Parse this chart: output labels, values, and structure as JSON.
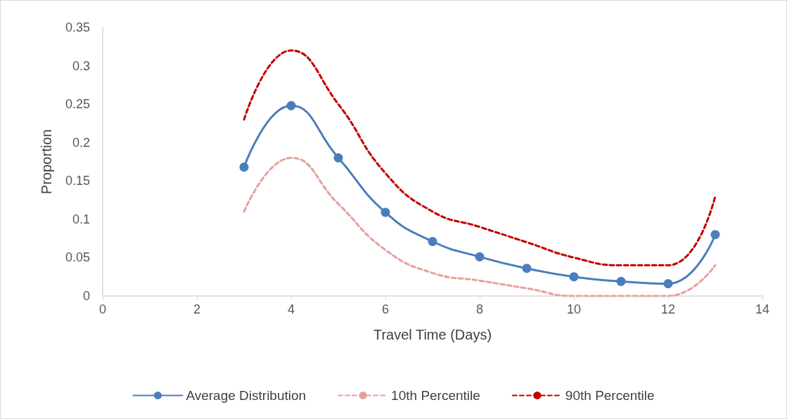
{
  "chart_data": {
    "type": "line",
    "xlabel": "Travel Time (Days)",
    "ylabel": "Proportion",
    "xlim": [
      0,
      14
    ],
    "xticks": [
      0,
      2,
      4,
      6,
      8,
      10,
      12,
      14
    ],
    "ylim": [
      0,
      0.35
    ],
    "yticks": [
      0,
      0.05,
      0.1,
      0.15,
      0.2,
      0.25,
      0.3,
      0.35
    ],
    "x": [
      3,
      4,
      5,
      6,
      7,
      8,
      9,
      10,
      11,
      12,
      13
    ],
    "grid": false,
    "legend": "bottom",
    "series": [
      {
        "name": "Average Distribution",
        "color": "#4a7ebb",
        "marker": "circle",
        "line_style": "solid",
        "values": [
          0.168,
          0.248,
          0.18,
          0.109,
          0.071,
          0.051,
          0.036,
          0.025,
          0.019,
          0.016,
          0.08
        ]
      },
      {
        "name": "10th Percentile",
        "color": "#e6a09c",
        "marker": "none",
        "line_style": "dashed",
        "values": [
          0.11,
          0.18,
          0.12,
          0.06,
          0.03,
          0.02,
          0.01,
          0,
          0,
          0,
          0.04
        ]
      },
      {
        "name": "90th Percentile",
        "color": "#c00000",
        "marker": "none",
        "line_style": "dashed",
        "values": [
          0.23,
          0.32,
          0.25,
          0.16,
          0.11,
          0.09,
          0.07,
          0.05,
          0.04,
          0.04,
          0.13
        ]
      }
    ]
  }
}
